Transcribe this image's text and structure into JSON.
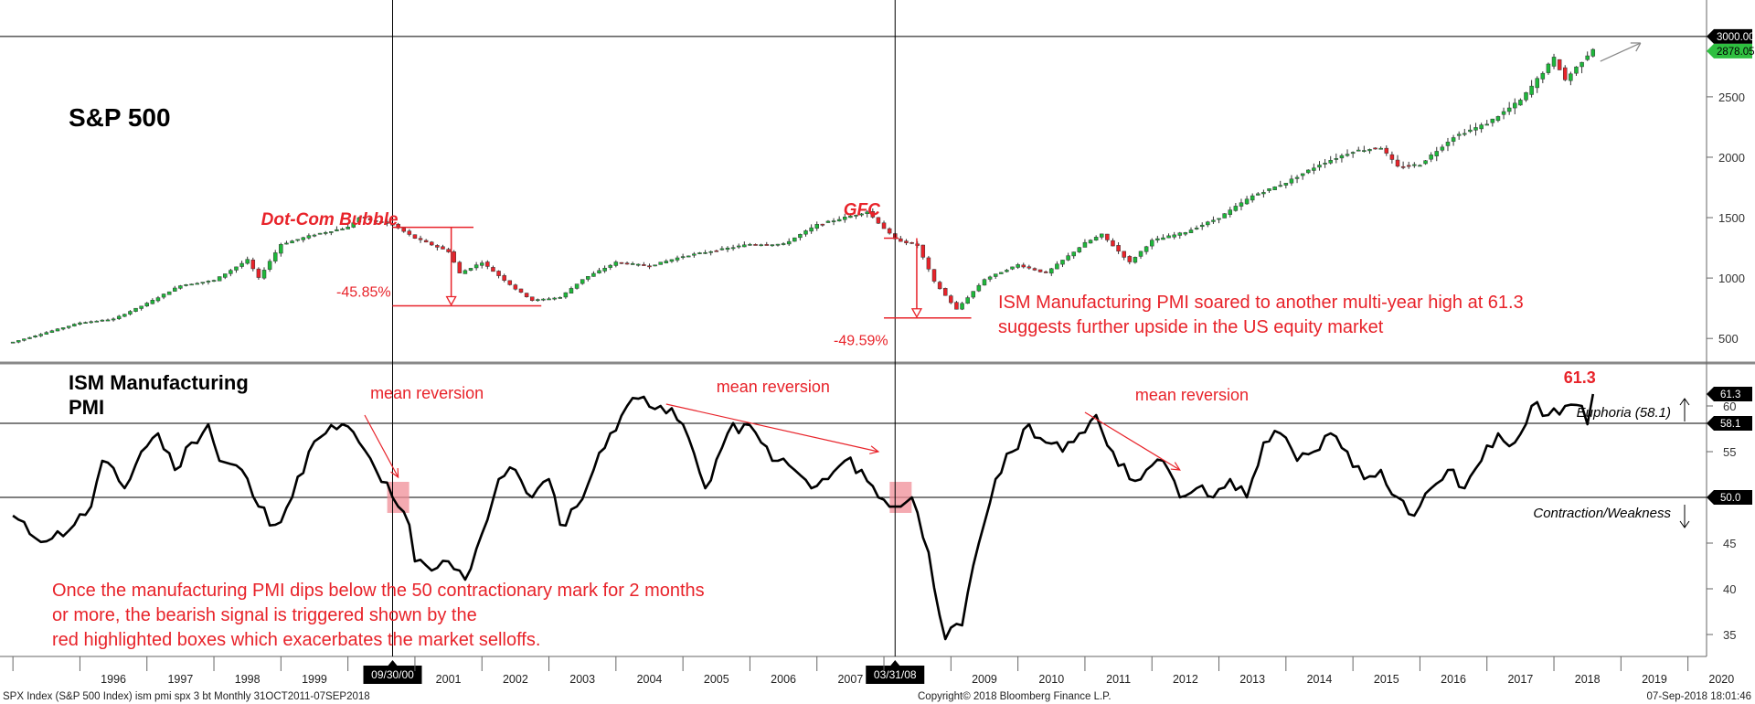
{
  "chart_data": [
    {
      "type": "candlestick",
      "title": "S&P 500",
      "x_range": [
        "1995-01",
        "2020-12"
      ],
      "ylim": [
        350,
        3150
      ],
      "y_ticks": [
        500,
        1000,
        1500,
        2000,
        2500,
        3000
      ],
      "y_tick_labels": [
        "500",
        "1000",
        "1500",
        "2000",
        "2500",
        "3000.00"
      ],
      "last_value_label": "2878.05",
      "series": [
        {
          "points": [
            [
              "1995-01",
              470
            ],
            [
              "1996-01",
              630
            ],
            [
              "1996-07",
              660
            ],
            [
              "1997-01",
              790
            ],
            [
              "1997-07",
              940
            ],
            [
              "1998-01",
              980
            ],
            [
              "1998-07",
              1150
            ],
            [
              "1998-09",
              1000
            ],
            [
              "1999-01",
              1280
            ],
            [
              "1999-07",
              1360
            ],
            [
              "2000-01",
              1420
            ],
            [
              "2000-03",
              1500
            ],
            [
              "2000-09",
              1440
            ],
            [
              "2001-01",
              1330
            ],
            [
              "2001-07",
              1220
            ],
            [
              "2001-09",
              1040
            ],
            [
              "2002-01",
              1130
            ],
            [
              "2002-07",
              910
            ],
            [
              "2002-10",
              815
            ],
            [
              "2003-03",
              840
            ],
            [
              "2003-07",
              990
            ],
            [
              "2004-01",
              1130
            ],
            [
              "2004-07",
              1100
            ],
            [
              "2005-01",
              1180
            ],
            [
              "2005-07",
              1230
            ],
            [
              "2006-01",
              1280
            ],
            [
              "2006-07",
              1280
            ],
            [
              "2007-01",
              1440
            ],
            [
              "2007-10",
              1550
            ],
            [
              "2008-03",
              1320
            ],
            [
              "2008-07",
              1270
            ],
            [
              "2008-10",
              970
            ],
            [
              "2009-02",
              740
            ],
            [
              "2009-03",
              790
            ],
            [
              "2009-07",
              990
            ],
            [
              "2010-01",
              1110
            ],
            [
              "2010-06",
              1040
            ],
            [
              "2011-01",
              1290
            ],
            [
              "2011-04",
              1360
            ],
            [
              "2011-09",
              1130
            ],
            [
              "2012-01",
              1310
            ],
            [
              "2012-07",
              1380
            ],
            [
              "2013-01",
              1500
            ],
            [
              "2013-07",
              1680
            ],
            [
              "2014-01",
              1790
            ],
            [
              "2014-07",
              1940
            ],
            [
              "2015-01",
              2050
            ],
            [
              "2015-06",
              2080
            ],
            [
              "2015-09",
              1920
            ],
            [
              "2016-01",
              1940
            ],
            [
              "2016-07",
              2170
            ],
            [
              "2017-01",
              2280
            ],
            [
              "2017-07",
              2470
            ],
            [
              "2018-01",
              2820
            ],
            [
              "2018-03",
              2640
            ],
            [
              "2018-08",
              2900
            ]
          ]
        }
      ],
      "annotations": [
        {
          "text": "Dot-Com Bubble",
          "x": "2000-01",
          "value": 1530
        },
        {
          "text": "GFC",
          "x": "2007-10",
          "value": 1580
        },
        {
          "text": "-45.85%",
          "from": "2000-09",
          "to": "2002-10",
          "high": 1420,
          "low": 770
        },
        {
          "text": "-49.59%",
          "from": "2008-01",
          "to": "2009-03",
          "high": 1330,
          "low": 670
        },
        {
          "text": "ISM Manufacturing PMI soared to another multi-year high at 61.3"
        },
        {
          "text": "suggests further upside in the US equity market"
        }
      ]
    },
    {
      "type": "line",
      "title": "ISM Manufacturing",
      "title2": "PMI",
      "ylim": [
        33,
        64
      ],
      "y_ticks": [
        35,
        40,
        45,
        50,
        55,
        60
      ],
      "y_tick_labels": [
        "35",
        "40",
        "45",
        "50.0",
        "55",
        "60"
      ],
      "levels": [
        {
          "value": 58.1,
          "label": "Euphoria (58.1)",
          "tag": "58.1"
        },
        {
          "value": 50,
          "label": "Contraction/Weakness",
          "tag": "50.0"
        }
      ],
      "last_value_label": "61.3",
      "peak_label": "61.3",
      "series": [
        {
          "points": [
            [
              "1995-01",
              48
            ],
            [
              "1995-04",
              46
            ],
            [
              "1995-08",
              45.5
            ],
            [
              "1995-12",
              47
            ],
            [
              "1996-03",
              49
            ],
            [
              "1996-05",
              54
            ],
            [
              "1996-09",
              51
            ],
            [
              "1996-12",
              55
            ],
            [
              "1997-03",
              57
            ],
            [
              "1997-06",
              53
            ],
            [
              "1997-09",
              56
            ],
            [
              "1997-12",
              58
            ],
            [
              "1998-02",
              54
            ],
            [
              "1998-06",
              53
            ],
            [
              "1998-09",
              49
            ],
            [
              "1998-12",
              47
            ],
            [
              "1999-03",
              50
            ],
            [
              "1999-06",
              55
            ],
            [
              "1999-09",
              57
            ],
            [
              "1999-12",
              58
            ],
            [
              "2000-03",
              56
            ],
            [
              "2000-06",
              53
            ],
            [
              "2000-09",
              50
            ],
            [
              "2000-10",
              49
            ],
            [
              "2000-12",
              47
            ],
            [
              "2001-01",
              43
            ],
            [
              "2001-04",
              42
            ],
            [
              "2001-07",
              43
            ],
            [
              "2001-09",
              42
            ],
            [
              "2001-10",
              41
            ],
            [
              "2002-01",
              46
            ],
            [
              "2002-04",
              52
            ],
            [
              "2002-07",
              53
            ],
            [
              "2002-10",
              50
            ],
            [
              "2003-01",
              52
            ],
            [
              "2003-03",
              47
            ],
            [
              "2003-06",
              49
            ],
            [
              "2003-09",
              53
            ],
            [
              "2003-12",
              57
            ],
            [
              "2004-03",
              60
            ],
            [
              "2004-06",
              61
            ],
            [
              "2004-09",
              60
            ],
            [
              "2005-01",
              58
            ],
            [
              "2005-05",
              51
            ],
            [
              "2005-09",
              57
            ],
            [
              "2005-12",
              58
            ],
            [
              "2006-03",
              56
            ],
            [
              "2006-06",
              54
            ],
            [
              "2006-09",
              53
            ],
            [
              "2006-12",
              51
            ],
            [
              "2007-03",
              52
            ],
            [
              "2007-06",
              54
            ],
            [
              "2007-09",
              53
            ],
            [
              "2007-12",
              50
            ],
            [
              "2008-03",
              49
            ],
            [
              "2008-06",
              50
            ],
            [
              "2008-09",
              44
            ],
            [
              "2008-12",
              34.5
            ],
            [
              "2009-03",
              36
            ],
            [
              "2009-06",
              45
            ],
            [
              "2009-09",
              52
            ],
            [
              "2009-12",
              55
            ],
            [
              "2010-03",
              58
            ],
            [
              "2010-06",
              56
            ],
            [
              "2010-09",
              55
            ],
            [
              "2010-12",
              57
            ],
            [
              "2011-03",
              59
            ],
            [
              "2011-06",
              55
            ],
            [
              "2011-09",
              52
            ],
            [
              "2011-12",
              53
            ],
            [
              "2012-03",
              54
            ],
            [
              "2012-06",
              50
            ],
            [
              "2012-09",
              51
            ],
            [
              "2012-12",
              50
            ],
            [
              "2013-03",
              52
            ],
            [
              "2013-06",
              50
            ],
            [
              "2013-09",
              56
            ],
            [
              "2013-12",
              57
            ],
            [
              "2014-03",
              54
            ],
            [
              "2014-06",
              55
            ],
            [
              "2014-09",
              57
            ],
            [
              "2014-12",
              55
            ],
            [
              "2015-03",
              52
            ],
            [
              "2015-06",
              53
            ],
            [
              "2015-09",
              50
            ],
            [
              "2015-12",
              48
            ],
            [
              "2016-03",
              51
            ],
            [
              "2016-06",
              53
            ],
            [
              "2016-09",
              51
            ],
            [
              "2016-12",
              54
            ],
            [
              "2017-03",
              57
            ],
            [
              "2017-06",
              56
            ],
            [
              "2017-09",
              60
            ],
            [
              "2017-12",
              59
            ],
            [
              "2018-03",
              60
            ],
            [
              "2018-06",
              60
            ],
            [
              "2018-07",
              58
            ],
            [
              "2018-08",
              61.3
            ]
          ]
        }
      ],
      "annotations": [
        {
          "text": "mean reversion",
          "x": "2000-05",
          "value": 60.8
        },
        {
          "text": "mean reversion",
          "x": "2005-07",
          "value": 61.5
        },
        {
          "text": "mean reversion",
          "x": "2011-10",
          "value": 60.6
        },
        {
          "text": "Once the manufacturing PMI dips below the 50 contractionary mark for 2 months"
        },
        {
          "text": "or more, the bearish signal is triggered shown by the"
        },
        {
          "text": "red highlighted boxes which exacerbates the market selloffs."
        }
      ]
    }
  ],
  "x_axis": {
    "years": [
      "1996",
      "1997",
      "1998",
      "1999",
      "2001",
      "2002",
      "2003",
      "2004",
      "2005",
      "2006",
      "2007",
      "2009",
      "2010",
      "2011",
      "2012",
      "2013",
      "2014",
      "2015",
      "2016",
      "2017",
      "2018",
      "2019",
      "2020"
    ],
    "markers": [
      {
        "date": "2000-09",
        "label": "09/30/00"
      },
      {
        "date": "2008-03",
        "label": "03/31/08"
      }
    ]
  },
  "footer": {
    "left": "SPX Index (S&P 500 Index) ism pmi spx 3 bt  Monthly 31OCT2011-07SEP2018",
    "center": "Copyright© 2018 Bloomberg Finance L.P.",
    "right": "07-Sep-2018 18:01:46"
  },
  "colors": {
    "up": "#1db83a",
    "down": "#e8232a",
    "line": "#000000",
    "accent": "#e8232a",
    "tag": "#000000",
    "last_tag": "#2fbf40",
    "box": "#f08d97"
  }
}
